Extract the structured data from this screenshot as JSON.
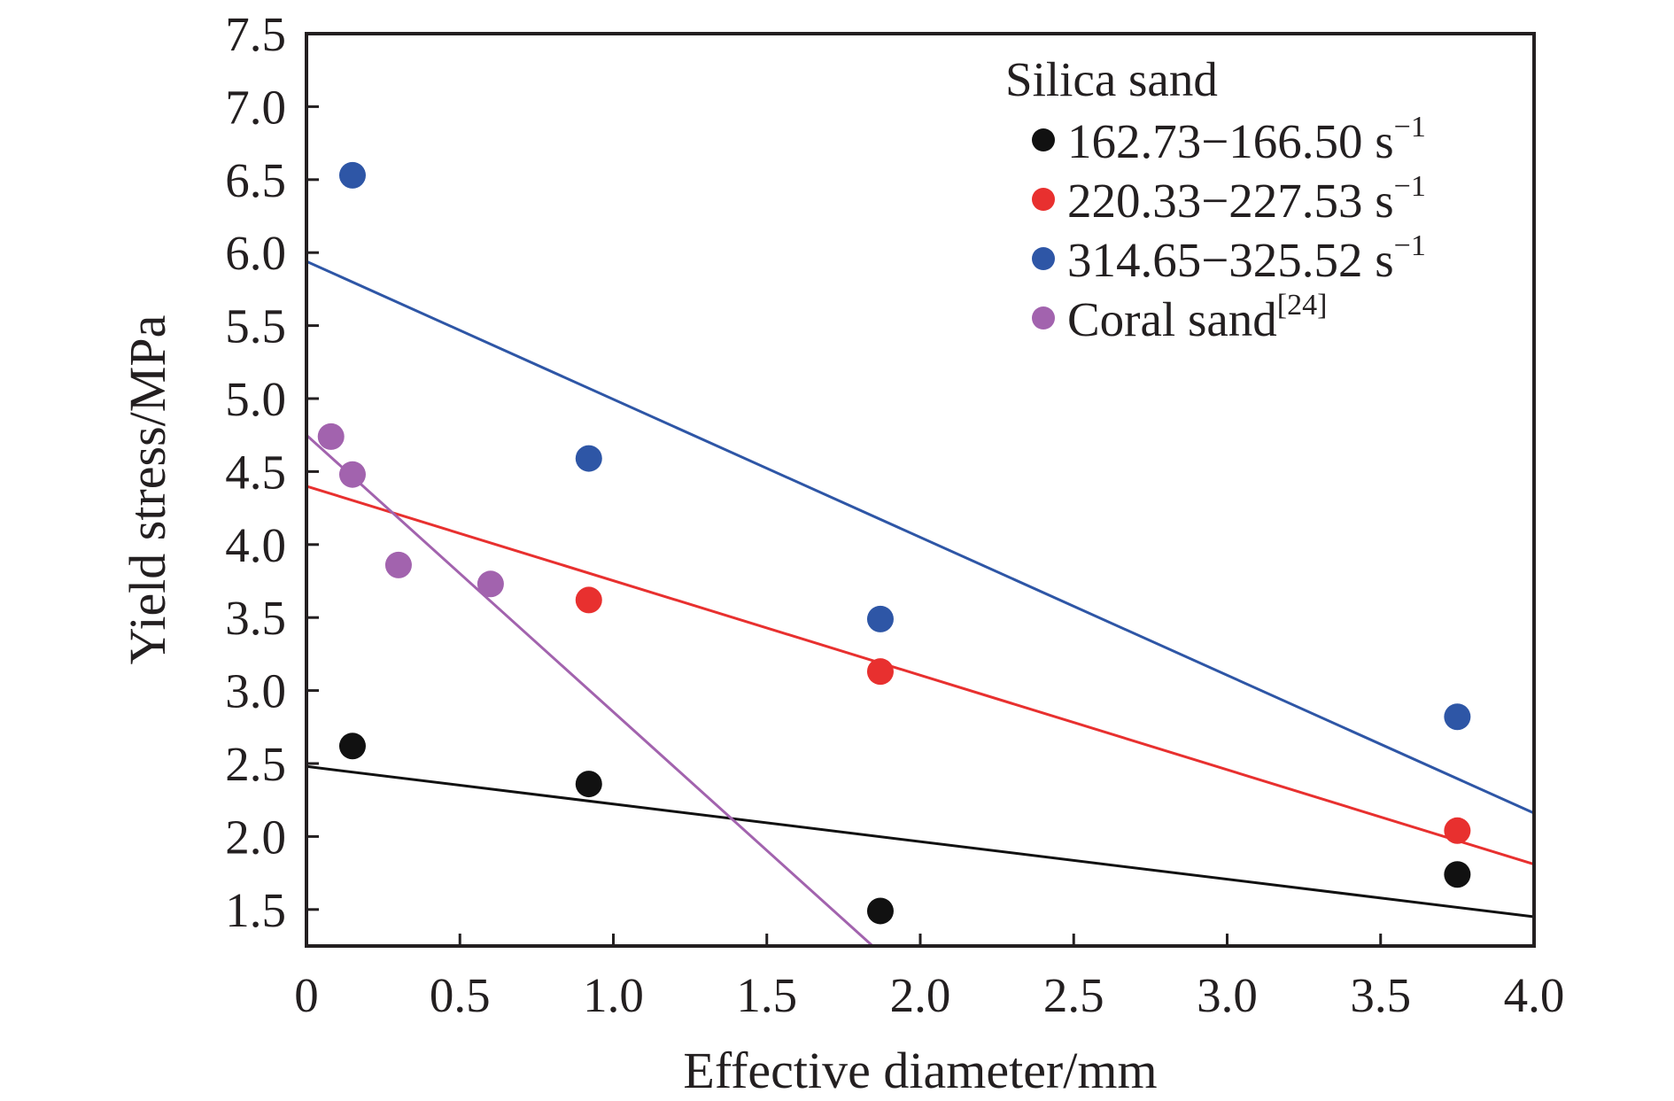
{
  "chart_data": {
    "type": "scatter",
    "xlabel": "Effective diameter/mm",
    "ylabel": "Yield stress/MPa",
    "xlim": [
      0,
      4.0
    ],
    "ylim": [
      1.25,
      7.5
    ],
    "x_ticks": [
      "0",
      "0.5",
      "1.0",
      "1.5",
      "2.0",
      "2.5",
      "3.0",
      "3.5",
      "4.0"
    ],
    "y_ticks": [
      "1.5",
      "2.0",
      "2.5",
      "3.0",
      "3.5",
      "4.0",
      "4.5",
      "5.0",
      "5.5",
      "6.0",
      "6.5",
      "7.0",
      "7.5"
    ],
    "legend": {
      "placement": "top-right",
      "group_title": "Silica sand",
      "entries": [
        {
          "label": "162.73−166.50 s",
          "sup": "−1",
          "color": "#111111"
        },
        {
          "label": "220.33−227.53 s",
          "sup": "−1",
          "color": "#e8302f"
        },
        {
          "label": "314.65−325.52 s",
          "sup": "−1",
          "color": "#2e56a6"
        },
        {
          "label": "Coral sand",
          "sup": "[24]",
          "color": "#a263ae"
        }
      ]
    },
    "series": [
      {
        "color": "#111111",
        "points": [
          [
            0.15,
            2.62
          ],
          [
            0.92,
            2.36
          ],
          [
            1.87,
            1.49
          ],
          [
            3.75,
            1.74
          ]
        ],
        "fit": [
          [
            0,
            2.48
          ],
          [
            4.0,
            1.45
          ]
        ]
      },
      {
        "color": "#e8302f",
        "points": [
          [
            0.92,
            3.62
          ],
          [
            1.87,
            3.13
          ],
          [
            3.75,
            2.04
          ]
        ],
        "fit": [
          [
            0,
            4.4
          ],
          [
            4.0,
            1.81
          ]
        ]
      },
      {
        "color": "#2e56a6",
        "points": [
          [
            0.15,
            6.53
          ],
          [
            0.92,
            4.59
          ],
          [
            1.87,
            3.49
          ],
          [
            3.75,
            2.82
          ]
        ],
        "fit": [
          [
            0,
            5.94
          ],
          [
            4.0,
            2.16
          ]
        ]
      },
      {
        "color": "#a263ae",
        "points": [
          [
            0.08,
            4.74
          ],
          [
            0.15,
            4.48
          ],
          [
            0.3,
            3.86
          ],
          [
            0.6,
            3.73
          ]
        ],
        "fit": [
          [
            0,
            4.75
          ],
          [
            1.845,
            1.25
          ]
        ]
      }
    ],
    "grid": false
  }
}
